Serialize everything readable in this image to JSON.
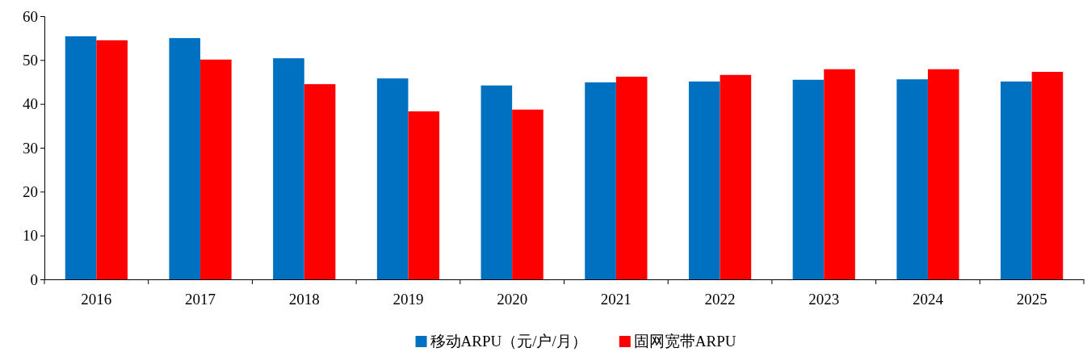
{
  "chart_data": {
    "type": "bar",
    "categories": [
      "2016",
      "2017",
      "2018",
      "2019",
      "2020",
      "2021",
      "2022",
      "2023",
      "2024",
      "2025"
    ],
    "series": [
      {
        "name": "移动ARPU（元/户/月）",
        "color": "#0070c0",
        "values": [
          55.4,
          55.0,
          50.4,
          45.8,
          44.2,
          44.9,
          45.1,
          45.5,
          45.6,
          45.1
        ]
      },
      {
        "name": "固网宽带ARPU",
        "color": "#ff0000",
        "values": [
          54.5,
          50.1,
          44.5,
          38.3,
          38.7,
          46.2,
          46.6,
          47.9,
          47.9,
          47.3
        ]
      }
    ],
    "ylim": [
      0,
      60
    ],
    "yticks": [
      0,
      10,
      20,
      30,
      40,
      50,
      60
    ],
    "grid": false,
    "legend": "bottom"
  }
}
